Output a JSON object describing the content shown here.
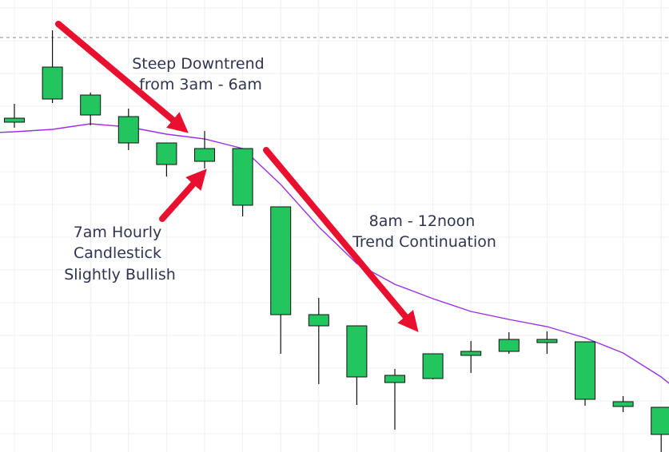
{
  "chart_data": {
    "type": "candlestick",
    "ylim": [
      0,
      566
    ],
    "reference_line_value": 519,
    "candles": [
      {
        "o": 413,
        "c": 418,
        "h": 436,
        "l": 406
      },
      {
        "o": 442,
        "c": 482,
        "h": 528,
        "l": 437
      },
      {
        "o": 422,
        "c": 447,
        "h": 450,
        "l": 409
      },
      {
        "o": 387,
        "c": 420,
        "h": 430,
        "l": 378
      },
      {
        "o": 360,
        "c": 387,
        "h": 387,
        "l": 345
      },
      {
        "o": 364,
        "c": 380,
        "h": 402,
        "l": 355
      },
      {
        "o": 309,
        "c": 380,
        "h": 380,
        "l": 295
      },
      {
        "o": 172,
        "c": 307,
        "h": 307,
        "l": 123
      },
      {
        "o": 158,
        "c": 172,
        "h": 193,
        "l": 85
      },
      {
        "o": 94,
        "c": 158,
        "h": 158,
        "l": 59
      },
      {
        "o": 87,
        "c": 96,
        "h": 104,
        "l": 28
      },
      {
        "o": 92,
        "c": 123,
        "h": 123,
        "l": 91
      },
      {
        "o": 121,
        "c": 126,
        "h": 139,
        "l": 99
      },
      {
        "o": 126,
        "c": 141,
        "h": 150,
        "l": 123
      },
      {
        "o": 137,
        "c": 141,
        "h": 151,
        "l": 123
      },
      {
        "o": 66,
        "c": 138,
        "h": 138,
        "l": 58
      },
      {
        "o": 57,
        "c": 63,
        "h": 70,
        "l": 50
      },
      {
        "o": 22,
        "c": 56,
        "h": 56,
        "l": 0
      }
    ],
    "moving_average": [
      401,
      404,
      411,
      407,
      398,
      392,
      380,
      335,
      282,
      236,
      210,
      192,
      176,
      166,
      157,
      143,
      124,
      94
    ]
  },
  "colors": {
    "bull": "#22c55e",
    "bear": "#ef0a0a",
    "wick": "#111111",
    "ma": "#9b30e6",
    "arrow": "#e8102e",
    "grid": "#eef0f4",
    "reference_line": "#9aa0aa",
    "text": "#2f3550"
  },
  "annotations": {
    "downtrend": [
      "Steep Downtrend",
      "from 3am - 6am"
    ],
    "candle7am": [
      "7am Hourly",
      "Candlestick",
      "Slightly Bullish"
    ],
    "continuation": [
      "8am - 12noon",
      "Trend Continuation"
    ]
  }
}
